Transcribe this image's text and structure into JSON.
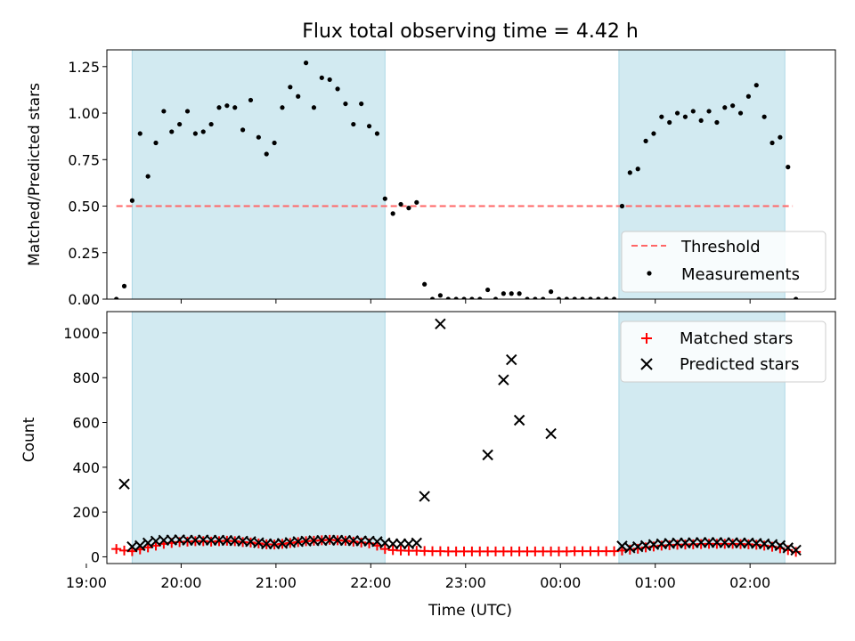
{
  "title": "Flux total observing time = 4.42 h",
  "colors": {
    "observing_band": "#add8e6",
    "threshold": "#ff6666",
    "matched": "#ff0000",
    "predicted": "#000000",
    "measurement": "#000000"
  },
  "chart_data": [
    {
      "type": "scatter",
      "panel": "top",
      "ylabel": "Matched/Predicted stars",
      "ylim": [
        0,
        1.34
      ],
      "yticks": [
        "0.00",
        "0.25",
        "0.50",
        "0.75",
        "1.00",
        "1.25"
      ],
      "xlim": [
        "19:13",
        "02:54"
      ],
      "legend_position": "lower-right",
      "observing_intervals": [
        [
          "19:29",
          "22:09"
        ],
        [
          "00:37",
          "02:22"
        ]
      ],
      "threshold": {
        "name": "Threshold",
        "value": 0.5,
        "x_range": [
          "19:19",
          "02:27"
        ]
      },
      "series": [
        {
          "name": "Measurements",
          "x": [
            "19:19",
            "19:24",
            "19:29",
            "19:34",
            "19:39",
            "19:44",
            "19:49",
            "19:54",
            "19:59",
            "20:04",
            "20:09",
            "20:14",
            "20:19",
            "20:24",
            "20:29",
            "20:34",
            "20:39",
            "20:44",
            "20:49",
            "20:54",
            "20:59",
            "21:04",
            "21:09",
            "21:14",
            "21:19",
            "21:24",
            "21:29",
            "21:34",
            "21:39",
            "21:44",
            "21:49",
            "21:54",
            "21:59",
            "22:04",
            "22:09",
            "22:14",
            "22:19",
            "22:24",
            "22:29",
            "22:34",
            "22:39",
            "22:44",
            "22:49",
            "22:54",
            "22:59",
            "23:04",
            "23:09",
            "23:14",
            "23:19",
            "23:24",
            "23:29",
            "23:34",
            "23:39",
            "23:44",
            "23:49",
            "23:54",
            "23:59",
            "00:04",
            "00:09",
            "00:14",
            "00:19",
            "00:24",
            "00:29",
            "00:34",
            "00:39",
            "00:44",
            "00:49",
            "00:54",
            "00:59",
            "01:04",
            "01:09",
            "01:14",
            "01:19",
            "01:24",
            "01:29",
            "01:34",
            "01:39",
            "01:44",
            "01:49",
            "01:54",
            "01:59",
            "02:04",
            "02:09",
            "02:14",
            "02:19",
            "02:24",
            "02:29"
          ],
          "y": [
            0.0,
            0.07,
            0.53,
            0.89,
            0.66,
            0.84,
            1.01,
            0.9,
            0.94,
            1.01,
            0.89,
            0.9,
            0.94,
            1.03,
            1.04,
            1.03,
            0.91,
            1.07,
            0.87,
            0.78,
            0.84,
            1.03,
            1.14,
            1.09,
            1.27,
            1.03,
            1.19,
            1.18,
            1.13,
            1.05,
            0.94,
            1.05,
            0.93,
            0.89,
            0.54,
            0.46,
            0.51,
            0.49,
            0.52,
            0.08,
            0.0,
            0.02,
            0.0,
            0.0,
            0.0,
            0.0,
            0.0,
            0.05,
            0.0,
            0.03,
            0.03,
            0.03,
            0.0,
            0.0,
            0.0,
            0.04,
            0.0,
            0.0,
            0.0,
            0.0,
            0.0,
            0.0,
            0.0,
            0.0,
            0.5,
            0.68,
            0.7,
            0.85,
            0.89,
            0.98,
            0.95,
            1.0,
            0.98,
            1.01,
            0.96,
            1.01,
            0.95,
            1.03,
            1.04,
            1.0,
            1.09,
            1.15,
            0.98,
            0.84,
            0.87,
            0.71,
            0.0
          ]
        }
      ]
    },
    {
      "type": "scatter",
      "panel": "bottom",
      "ylabel": "Count",
      "xlabel": "Time (UTC)",
      "ylim": [
        -30,
        1095
      ],
      "yticks": [
        "0",
        "200",
        "400",
        "600",
        "800",
        "1000"
      ],
      "xlim": [
        "19:13",
        "02:54"
      ],
      "xticks": [
        "19:00",
        "20:00",
        "21:00",
        "22:00",
        "23:00",
        "00:00",
        "01:00",
        "02:00"
      ],
      "legend_position": "upper-right",
      "observing_intervals": [
        [
          "19:29",
          "22:09"
        ],
        [
          "00:37",
          "02:22"
        ]
      ],
      "series": [
        {
          "name": "Matched stars",
          "marker": "plus",
          "x": [
            "19:19",
            "19:24",
            "19:29",
            "19:34",
            "19:39",
            "19:44",
            "19:49",
            "19:54",
            "19:59",
            "20:04",
            "20:09",
            "20:14",
            "20:19",
            "20:24",
            "20:29",
            "20:34",
            "20:39",
            "20:44",
            "20:49",
            "20:54",
            "20:59",
            "21:04",
            "21:09",
            "21:14",
            "21:19",
            "21:24",
            "21:29",
            "21:34",
            "21:39",
            "21:44",
            "21:49",
            "21:54",
            "21:59",
            "22:04",
            "22:09",
            "22:14",
            "22:19",
            "22:24",
            "22:29",
            "22:34",
            "22:39",
            "22:44",
            "22:49",
            "22:54",
            "22:59",
            "23:04",
            "23:09",
            "23:14",
            "23:19",
            "23:24",
            "23:29",
            "23:34",
            "23:39",
            "23:44",
            "23:49",
            "23:54",
            "23:59",
            "00:04",
            "00:09",
            "00:14",
            "00:19",
            "00:24",
            "00:29",
            "00:34",
            "00:39",
            "00:44",
            "00:49",
            "00:54",
            "00:59",
            "01:04",
            "01:09",
            "01:14",
            "01:19",
            "01:24",
            "01:29",
            "01:34",
            "01:39",
            "01:44",
            "01:49",
            "01:54",
            "01:59",
            "02:04",
            "02:09",
            "02:14",
            "02:19",
            "02:24",
            "02:29"
          ],
          "y": [
            35,
            28,
            25,
            33,
            42,
            50,
            58,
            62,
            66,
            68,
            70,
            70,
            68,
            70,
            72,
            70,
            66,
            64,
            60,
            56,
            55,
            58,
            62,
            66,
            70,
            72,
            74,
            76,
            74,
            72,
            68,
            64,
            60,
            50,
            35,
            30,
            28,
            27,
            27,
            26,
            25,
            25,
            24,
            24,
            24,
            24,
            24,
            24,
            24,
            24,
            24,
            24,
            24,
            24,
            24,
            24,
            24,
            24,
            25,
            25,
            25,
            25,
            25,
            25,
            28,
            32,
            36,
            42,
            46,
            50,
            52,
            54,
            55,
            56,
            57,
            58,
            58,
            58,
            58,
            57,
            56,
            54,
            50,
            45,
            38,
            30,
            22
          ]
        },
        {
          "name": "Predicted stars",
          "marker": "x",
          "x": [
            "19:24",
            "19:29",
            "19:34",
            "19:39",
            "19:44",
            "19:49",
            "19:54",
            "19:59",
            "20:04",
            "20:09",
            "20:14",
            "20:19",
            "20:24",
            "20:29",
            "20:34",
            "20:39",
            "20:44",
            "20:49",
            "20:54",
            "20:59",
            "21:04",
            "21:09",
            "21:14",
            "21:19",
            "21:24",
            "21:29",
            "21:34",
            "21:39",
            "21:44",
            "21:49",
            "21:54",
            "21:59",
            "22:04",
            "22:09",
            "22:14",
            "22:19",
            "22:24",
            "22:29",
            "22:34",
            "22:44",
            "23:14",
            "23:24",
            "23:29",
            "23:34",
            "23:54",
            "00:39",
            "00:44",
            "00:49",
            "00:54",
            "00:59",
            "01:04",
            "01:09",
            "01:14",
            "01:19",
            "01:24",
            "01:29",
            "01:34",
            "01:39",
            "01:44",
            "01:49",
            "01:54",
            "01:59",
            "02:04",
            "02:09",
            "02:14",
            "02:19",
            "02:24",
            "02:29"
          ],
          "y": [
            325,
            45,
            50,
            62,
            70,
            74,
            75,
            76,
            74,
            74,
            75,
            74,
            74,
            73,
            72,
            70,
            68,
            63,
            58,
            58,
            60,
            64,
            68,
            70,
            72,
            73,
            74,
            74,
            73,
            72,
            71,
            70,
            68,
            62,
            58,
            58,
            58,
            62,
            270,
            1040,
            455,
            790,
            880,
            610,
            550,
            48,
            40,
            45,
            50,
            55,
            58,
            60,
            62,
            62,
            63,
            64,
            64,
            64,
            63,
            63,
            62,
            62,
            60,
            58,
            55,
            50,
            40,
            30
          ]
        }
      ]
    }
  ]
}
